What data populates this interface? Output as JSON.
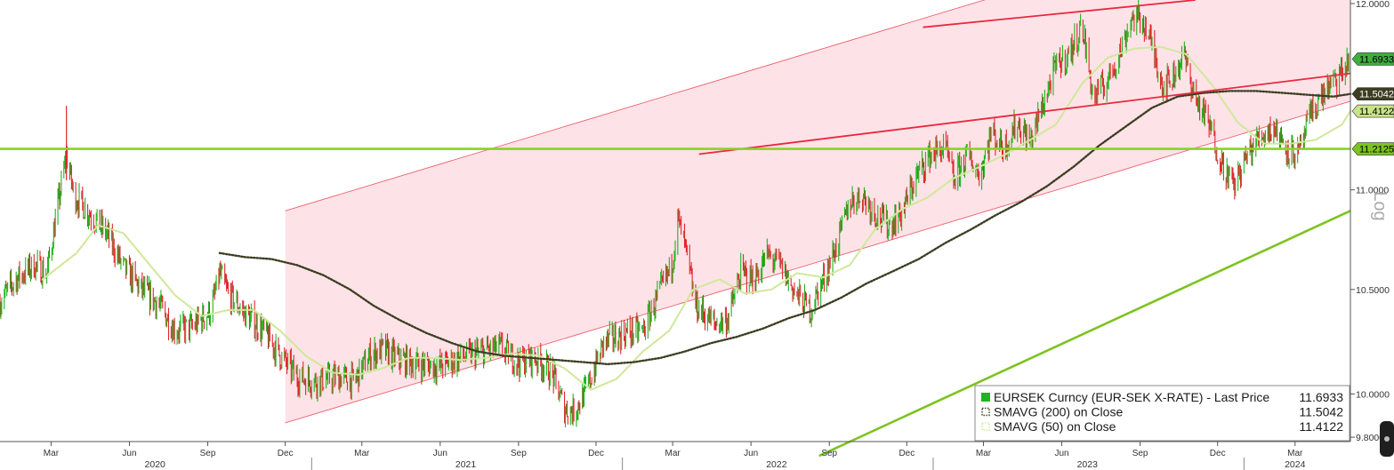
{
  "chart_data": {
    "type": "line",
    "scale": "log",
    "scale_label": "Log",
    "ylim": [
      9.78,
      12.02
    ],
    "y_ticks": [
      {
        "value": 12.0,
        "label": "12.0000"
      },
      {
        "value": 11.0,
        "label": "11.0000"
      },
      {
        "value": 10.5,
        "label": "10.5000"
      },
      {
        "value": 10.0,
        "label": "10.0000"
      },
      {
        "value": 9.8,
        "label": "9.8000"
      }
    ],
    "x_range": [
      "2020-01-01",
      "2024-05-05"
    ],
    "x_month_ticks": [
      {
        "date": "2020-03-01",
        "label": "Mar"
      },
      {
        "date": "2020-06-01",
        "label": "Jun"
      },
      {
        "date": "2020-09-01",
        "label": "Sep"
      },
      {
        "date": "2020-12-01",
        "label": "Dec"
      },
      {
        "date": "2021-03-01",
        "label": "Mar"
      },
      {
        "date": "2021-06-01",
        "label": "Jun"
      },
      {
        "date": "2021-09-01",
        "label": "Sep"
      },
      {
        "date": "2021-12-01",
        "label": "Dec"
      },
      {
        "date": "2022-03-01",
        "label": "Mar"
      },
      {
        "date": "2022-06-01",
        "label": "Jun"
      },
      {
        "date": "2022-09-01",
        "label": "Sep"
      },
      {
        "date": "2022-12-01",
        "label": "Dec"
      },
      {
        "date": "2023-03-01",
        "label": "Mar"
      },
      {
        "date": "2023-06-01",
        "label": "Jun"
      },
      {
        "date": "2023-09-01",
        "label": "Sep"
      },
      {
        "date": "2023-12-01",
        "label": "Dec"
      },
      {
        "date": "2024-03-01",
        "label": "Mar"
      }
    ],
    "x_year_labels": [
      {
        "date": "2020-07-01",
        "label": "2020"
      },
      {
        "date": "2021-07-01",
        "label": "2021"
      },
      {
        "date": "2022-07-01",
        "label": "2022"
      },
      {
        "date": "2023-07-01",
        "label": "2023"
      },
      {
        "date": "2024-03-01",
        "label": "2024"
      }
    ],
    "year_boundaries": [
      "2021-01-01",
      "2022-01-01",
      "2023-01-01",
      "2024-01-01"
    ],
    "price_anchors": [
      [
        "2020-01-01",
        10.44
      ],
      [
        "2020-01-20",
        10.55
      ],
      [
        "2020-02-10",
        10.62
      ],
      [
        "2020-02-25",
        10.58
      ],
      [
        "2020-03-09",
        10.92
      ],
      [
        "2020-03-19",
        11.18
      ],
      [
        "2020-03-28",
        10.97
      ],
      [
        "2020-04-15",
        10.88
      ],
      [
        "2020-05-05",
        10.78
      ],
      [
        "2020-05-25",
        10.61
      ],
      [
        "2020-06-15",
        10.5
      ],
      [
        "2020-07-05",
        10.43
      ],
      [
        "2020-07-25",
        10.3
      ],
      [
        "2020-08-15",
        10.32
      ],
      [
        "2020-09-05",
        10.4
      ],
      [
        "2020-09-15",
        10.58
      ],
      [
        "2020-09-25",
        10.48
      ],
      [
        "2020-10-15",
        10.38
      ],
      [
        "2020-11-05",
        10.3
      ],
      [
        "2020-11-25",
        10.18
      ],
      [
        "2020-12-15",
        10.08
      ],
      [
        "2021-01-05",
        10.06
      ],
      [
        "2021-02-01",
        10.08
      ],
      [
        "2021-02-20",
        10.06
      ],
      [
        "2021-03-10",
        10.18
      ],
      [
        "2021-03-25",
        10.21
      ],
      [
        "2021-04-15",
        10.16
      ],
      [
        "2021-05-10",
        10.14
      ],
      [
        "2021-06-01",
        10.13
      ],
      [
        "2021-06-25",
        10.17
      ],
      [
        "2021-07-20",
        10.2
      ],
      [
        "2021-08-10",
        10.22
      ],
      [
        "2021-09-01",
        10.15
      ],
      [
        "2021-09-20",
        10.17
      ],
      [
        "2021-10-10",
        10.1
      ],
      [
        "2021-10-25",
        9.93
      ],
      [
        "2021-11-05",
        9.92
      ],
      [
        "2021-11-20",
        10.02
      ],
      [
        "2021-12-10",
        10.24
      ],
      [
        "2022-01-05",
        10.29
      ],
      [
        "2022-01-25",
        10.3
      ],
      [
        "2022-02-10",
        10.45
      ],
      [
        "2022-02-28",
        10.62
      ],
      [
        "2022-03-07",
        10.85
      ],
      [
        "2022-03-15",
        10.72
      ],
      [
        "2022-03-28",
        10.42
      ],
      [
        "2022-04-20",
        10.33
      ],
      [
        "2022-05-05",
        10.36
      ],
      [
        "2022-05-20",
        10.58
      ],
      [
        "2022-06-05",
        10.55
      ],
      [
        "2022-06-20",
        10.67
      ],
      [
        "2022-07-05",
        10.62
      ],
      [
        "2022-07-25",
        10.47
      ],
      [
        "2022-08-10",
        10.4
      ],
      [
        "2022-08-25",
        10.55
      ],
      [
        "2022-09-10",
        10.72
      ],
      [
        "2022-09-25",
        10.94
      ],
      [
        "2022-10-10",
        10.97
      ],
      [
        "2022-10-25",
        10.88
      ],
      [
        "2022-11-10",
        10.82
      ],
      [
        "2022-11-25",
        10.88
      ],
      [
        "2022-12-10",
        11.05
      ],
      [
        "2022-12-28",
        11.18
      ],
      [
        "2023-01-15",
        11.22
      ],
      [
        "2023-01-25",
        11.05
      ],
      [
        "2023-02-10",
        11.18
      ],
      [
        "2023-02-25",
        11.08
      ],
      [
        "2023-03-10",
        11.3
      ],
      [
        "2023-03-25",
        11.22
      ],
      [
        "2023-04-10",
        11.35
      ],
      [
        "2023-04-25",
        11.25
      ],
      [
        "2023-05-10",
        11.45
      ],
      [
        "2023-05-25",
        11.65
      ],
      [
        "2023-06-10",
        11.72
      ],
      [
        "2023-06-25",
        11.88
      ],
      [
        "2023-07-08",
        11.48
      ],
      [
        "2023-07-25",
        11.58
      ],
      [
        "2023-08-10",
        11.75
      ],
      [
        "2023-08-22",
        11.92
      ],
      [
        "2023-09-05",
        11.9
      ],
      [
        "2023-09-18",
        11.72
      ],
      [
        "2023-09-28",
        11.55
      ],
      [
        "2023-10-10",
        11.6
      ],
      [
        "2023-10-22",
        11.72
      ],
      [
        "2023-11-05",
        11.48
      ],
      [
        "2023-11-20",
        11.35
      ],
      [
        "2023-12-05",
        11.15
      ],
      [
        "2023-12-20",
        11.02
      ],
      [
        "2024-01-05",
        11.18
      ],
      [
        "2024-01-20",
        11.28
      ],
      [
        "2024-02-05",
        11.33
      ],
      [
        "2024-02-20",
        11.22
      ],
      [
        "2024-03-05",
        11.18
      ],
      [
        "2024-03-20",
        11.4
      ],
      [
        "2024-04-05",
        11.52
      ],
      [
        "2024-04-20",
        11.58
      ],
      [
        "2024-05-05",
        11.6933
      ]
    ],
    "sma50_anchors": [
      [
        "2020-02-20",
        10.55
      ],
      [
        "2020-03-31",
        10.68
      ],
      [
        "2020-04-25",
        10.82
      ],
      [
        "2020-05-25",
        10.78
      ],
      [
        "2020-06-25",
        10.62
      ],
      [
        "2020-07-25",
        10.47
      ],
      [
        "2020-08-25",
        10.37
      ],
      [
        "2020-09-25",
        10.4
      ],
      [
        "2020-10-25",
        10.4
      ],
      [
        "2020-11-25",
        10.3
      ],
      [
        "2020-12-25",
        10.18
      ],
      [
        "2021-01-25",
        10.1
      ],
      [
        "2021-02-25",
        10.09
      ],
      [
        "2021-03-25",
        10.12
      ],
      [
        "2021-04-25",
        10.17
      ],
      [
        "2021-05-25",
        10.17
      ],
      [
        "2021-06-25",
        10.16
      ],
      [
        "2021-07-25",
        10.17
      ],
      [
        "2021-08-25",
        10.19
      ],
      [
        "2021-09-25",
        10.18
      ],
      [
        "2021-10-25",
        10.12
      ],
      [
        "2021-11-25",
        10.02
      ],
      [
        "2021-12-25",
        10.07
      ],
      [
        "2022-01-25",
        10.2
      ],
      [
        "2022-02-25",
        10.3
      ],
      [
        "2022-03-25",
        10.5
      ],
      [
        "2022-04-25",
        10.55
      ],
      [
        "2022-05-25",
        10.48
      ],
      [
        "2022-06-25",
        10.5
      ],
      [
        "2022-07-25",
        10.58
      ],
      [
        "2022-08-25",
        10.56
      ],
      [
        "2022-09-25",
        10.62
      ],
      [
        "2022-10-25",
        10.8
      ],
      [
        "2022-11-25",
        10.9
      ],
      [
        "2022-12-25",
        10.96
      ],
      [
        "2023-01-25",
        11.06
      ],
      [
        "2023-02-25",
        11.12
      ],
      [
        "2023-03-25",
        11.18
      ],
      [
        "2023-04-25",
        11.26
      ],
      [
        "2023-05-25",
        11.34
      ],
      [
        "2023-06-25",
        11.56
      ],
      [
        "2023-07-25",
        11.7
      ],
      [
        "2023-08-25",
        11.75
      ],
      [
        "2023-09-25",
        11.76
      ],
      [
        "2023-10-25",
        11.72
      ],
      [
        "2023-11-25",
        11.55
      ],
      [
        "2023-12-25",
        11.35
      ],
      [
        "2024-01-25",
        11.24
      ],
      [
        "2024-02-25",
        11.24
      ],
      [
        "2024-03-25",
        11.26
      ],
      [
        "2024-04-25",
        11.34
      ],
      [
        "2024-05-05",
        11.4122
      ]
    ],
    "sma200_anchors": [
      [
        "2020-09-15",
        10.68
      ],
      [
        "2020-10-15",
        10.66
      ],
      [
        "2020-11-15",
        10.65
      ],
      [
        "2020-12-15",
        10.62
      ],
      [
        "2021-01-15",
        10.57
      ],
      [
        "2021-02-15",
        10.5
      ],
      [
        "2021-03-15",
        10.42
      ],
      [
        "2021-04-15",
        10.35
      ],
      [
        "2021-05-15",
        10.29
      ],
      [
        "2021-06-15",
        10.24
      ],
      [
        "2021-07-15",
        10.2
      ],
      [
        "2021-08-15",
        10.18
      ],
      [
        "2021-09-15",
        10.17
      ],
      [
        "2021-10-15",
        10.16
      ],
      [
        "2021-11-15",
        10.15
      ],
      [
        "2021-12-15",
        10.14
      ],
      [
        "2022-01-15",
        10.15
      ],
      [
        "2022-02-15",
        10.17
      ],
      [
        "2022-03-15",
        10.2
      ],
      [
        "2022-04-15",
        10.24
      ],
      [
        "2022-05-15",
        10.27
      ],
      [
        "2022-06-15",
        10.31
      ],
      [
        "2022-07-15",
        10.36
      ],
      [
        "2022-08-15",
        10.4
      ],
      [
        "2022-09-15",
        10.46
      ],
      [
        "2022-10-15",
        10.53
      ],
      [
        "2022-11-15",
        10.59
      ],
      [
        "2022-12-15",
        10.65
      ],
      [
        "2023-01-15",
        10.73
      ],
      [
        "2023-02-15",
        10.8
      ],
      [
        "2023-03-15",
        10.87
      ],
      [
        "2023-04-15",
        10.94
      ],
      [
        "2023-05-15",
        11.02
      ],
      [
        "2023-06-15",
        11.12
      ],
      [
        "2023-07-15",
        11.23
      ],
      [
        "2023-08-15",
        11.33
      ],
      [
        "2023-09-15",
        11.43
      ],
      [
        "2023-10-15",
        11.49
      ],
      [
        "2023-11-15",
        11.51
      ],
      [
        "2023-12-15",
        11.52
      ],
      [
        "2024-01-15",
        11.52
      ],
      [
        "2024-02-15",
        11.51
      ],
      [
        "2024-03-15",
        11.5
      ],
      [
        "2024-04-15",
        11.49
      ],
      [
        "2024-05-05",
        11.5042
      ]
    ],
    "channel": {
      "lower_line": [
        [
          "2020-12-01",
          9.866
        ],
        [
          "2024-05-05",
          11.465
        ]
      ],
      "upper_line": [
        [
          "2020-12-01",
          10.893
        ],
        [
          "2024-05-05",
          12.656
        ]
      ],
      "fill_color": "#fde2e6",
      "line_color": "#f06070"
    },
    "trend_lines": [
      {
        "color": "#e8293f",
        "points": [
          [
            "2022-12-20",
            11.868
          ],
          [
            "2023-11-05",
            12.02
          ]
        ]
      },
      {
        "color": "#e8293f",
        "points": [
          [
            "2022-04-01",
            11.185
          ],
          [
            "2024-05-05",
            11.615
          ]
        ]
      },
      {
        "color": "#7dc31f",
        "points": [
          [
            "2022-08-20",
            9.715
          ],
          [
            "2024-05-05",
            10.893
          ]
        ]
      }
    ],
    "horizontal_line": {
      "value": 11.2125,
      "color": "#8cd02a"
    },
    "last_value_tags": [
      {
        "value": 11.6933,
        "label": "11.6933",
        "bg": "#3fae3f",
        "fg": "#000000"
      },
      {
        "value": 11.5042,
        "label": "11.5042",
        "bg": "#3d3d22",
        "fg": "#ffffff"
      },
      {
        "value": 11.4122,
        "label": "11.4122",
        "bg": "#c7e486",
        "fg": "#000000"
      },
      {
        "value": 11.2125,
        "label": "11.2125",
        "bg": "#7cc31f",
        "fg": "#000000"
      }
    ],
    "legend": [
      {
        "name": "EURSEK Curncy (EUR-SEK X-RATE) - Last Price",
        "value": "11.6933",
        "marker": "solid",
        "color": "#22b31f"
      },
      {
        "name": "SMAVG (200)  on Close",
        "value": "11.5042",
        "marker": "dotted",
        "color": "#3d3d22"
      },
      {
        "name": "SMAVG (50)  on Close",
        "value": "11.4122",
        "marker": "dotted",
        "color": "#cfe89a"
      }
    ],
    "colors": {
      "up_bar": "#22b31f",
      "down_bar": "#e0262e",
      "sma200": "#3d3d22",
      "sma50": "#cfe89a"
    },
    "grid": false
  }
}
